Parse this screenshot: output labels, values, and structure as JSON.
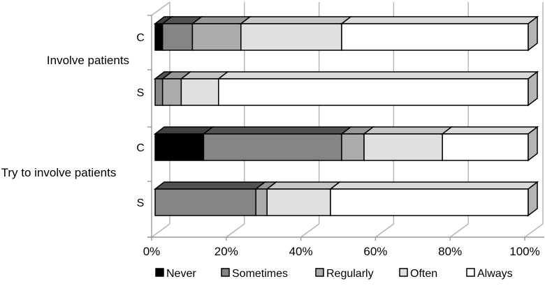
{
  "chart_data": {
    "type": "bar",
    "orientation": "horizontal",
    "stacked": true,
    "style": "3d",
    "value_unit": "percent",
    "title": "",
    "xlabel": "",
    "ylabel": "",
    "x_ticks": [
      "0%",
      "20%",
      "40%",
      "60%",
      "80%",
      "100%"
    ],
    "x_range": [
      0,
      100
    ],
    "grid": true,
    "legend_position": "bottom",
    "colors": {
      "bar_outline": "#000000",
      "gridline": "#b3b3b3",
      "axis_line": "#9a9a9a"
    },
    "series": [
      {
        "name": "Never",
        "color": "#000000"
      },
      {
        "name": "Sometimes",
        "color": "#858585"
      },
      {
        "name": "Regularly",
        "color": "#ababab"
      },
      {
        "name": "Often",
        "color": "#e0e0e0"
      },
      {
        "name": "Always",
        "color": "#ffffff"
      }
    ],
    "groups": [
      {
        "label": "Involve patients",
        "bars": [
          {
            "label": "C",
            "values": [
              2,
              8,
              13,
              27,
              50
            ]
          },
          {
            "label": "S",
            "values": [
              0,
              2,
              5,
              10,
              83
            ]
          }
        ]
      },
      {
        "label": "Try to involve patients",
        "bars": [
          {
            "label": "C",
            "values": [
              13,
              37,
              6,
              21,
              23
            ]
          },
          {
            "label": "S",
            "values": [
              0,
              27,
              3,
              17,
              53
            ]
          }
        ]
      }
    ]
  }
}
